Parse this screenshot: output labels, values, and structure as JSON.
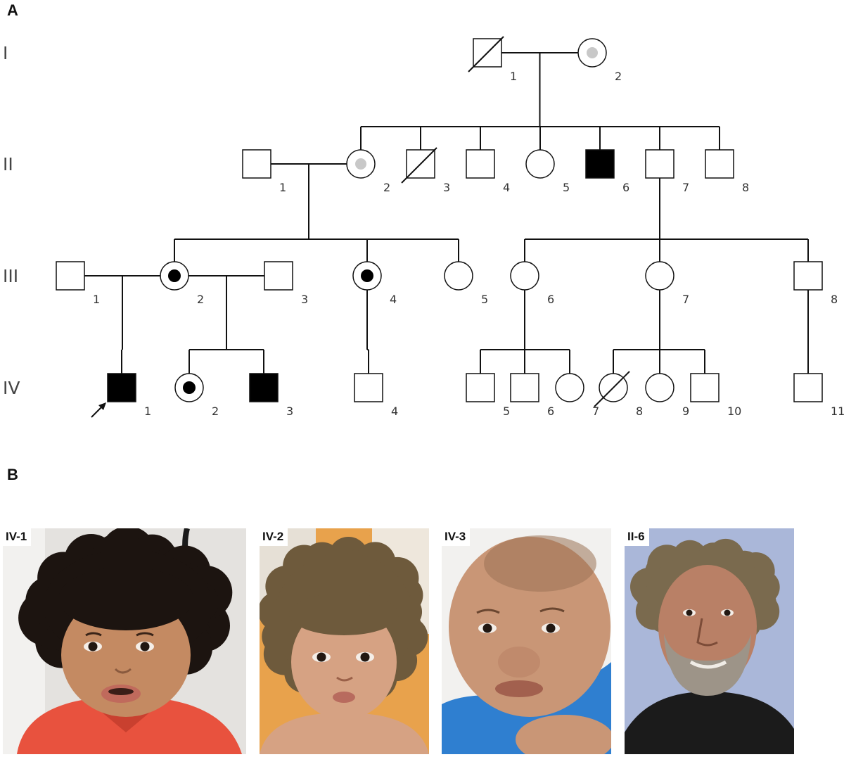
{
  "panels": {
    "a": "A",
    "b": "B"
  },
  "generations": [
    "I",
    "II",
    "III",
    "IV"
  ],
  "individuals": [
    {
      "id": "I-1",
      "gen": 0,
      "sex": "male",
      "status": "unaffected",
      "deceased": true,
      "label": "1"
    },
    {
      "id": "I-2",
      "gen": 0,
      "sex": "female",
      "status": "mosaic",
      "deceased": false,
      "label": "2"
    },
    {
      "id": "II-1",
      "gen": 1,
      "sex": "male",
      "status": "unaffected",
      "deceased": false,
      "label": "1"
    },
    {
      "id": "II-2",
      "gen": 1,
      "sex": "female",
      "status": "mosaic",
      "deceased": false,
      "label": "2"
    },
    {
      "id": "II-3",
      "gen": 1,
      "sex": "male",
      "status": "unaffected",
      "deceased": true,
      "label": "3"
    },
    {
      "id": "II-4",
      "gen": 1,
      "sex": "male",
      "status": "unaffected",
      "deceased": false,
      "label": "4"
    },
    {
      "id": "II-5",
      "gen": 1,
      "sex": "female",
      "status": "unaffected",
      "deceased": false,
      "label": "5"
    },
    {
      "id": "II-6",
      "gen": 1,
      "sex": "male",
      "status": "affected",
      "deceased": false,
      "label": "6"
    },
    {
      "id": "II-7",
      "gen": 1,
      "sex": "male",
      "status": "unaffected",
      "deceased": false,
      "label": "7"
    },
    {
      "id": "II-8",
      "gen": 1,
      "sex": "male",
      "status": "unaffected",
      "deceased": false,
      "label": "8"
    },
    {
      "id": "III-1",
      "gen": 2,
      "sex": "male",
      "status": "unaffected",
      "deceased": false,
      "label": "1"
    },
    {
      "id": "III-2",
      "gen": 2,
      "sex": "female",
      "status": "carrier",
      "deceased": false,
      "label": "2"
    },
    {
      "id": "III-3",
      "gen": 2,
      "sex": "male",
      "status": "unaffected",
      "deceased": false,
      "label": "3"
    },
    {
      "id": "III-4",
      "gen": 2,
      "sex": "female",
      "status": "carrier",
      "deceased": false,
      "label": "4"
    },
    {
      "id": "III-5",
      "gen": 2,
      "sex": "female",
      "status": "unaffected",
      "deceased": false,
      "label": "5"
    },
    {
      "id": "III-6",
      "gen": 2,
      "sex": "female",
      "status": "unaffected",
      "deceased": false,
      "label": "6"
    },
    {
      "id": "III-7",
      "gen": 2,
      "sex": "female",
      "status": "unaffected",
      "deceased": false,
      "label": "7"
    },
    {
      "id": "III-8",
      "gen": 2,
      "sex": "male",
      "status": "unaffected",
      "deceased": false,
      "label": "8"
    },
    {
      "id": "IV-1",
      "gen": 3,
      "sex": "male",
      "status": "affected",
      "deceased": false,
      "label": "1",
      "proband": true
    },
    {
      "id": "IV-2",
      "gen": 3,
      "sex": "female",
      "status": "carrier",
      "deceased": false,
      "label": "2"
    },
    {
      "id": "IV-3",
      "gen": 3,
      "sex": "male",
      "status": "affected",
      "deceased": false,
      "label": "3"
    },
    {
      "id": "IV-4",
      "gen": 3,
      "sex": "male",
      "status": "unaffected",
      "deceased": false,
      "label": "4"
    },
    {
      "id": "IV-5",
      "gen": 3,
      "sex": "male",
      "status": "unaffected",
      "deceased": false,
      "label": "5"
    },
    {
      "id": "IV-6",
      "gen": 3,
      "sex": "male",
      "status": "unaffected",
      "deceased": false,
      "label": "6"
    },
    {
      "id": "IV-7",
      "gen": 3,
      "sex": "female",
      "status": "unaffected",
      "deceased": false,
      "label": "7"
    },
    {
      "id": "IV-8",
      "gen": 3,
      "sex": "female",
      "status": "unaffected",
      "deceased": true,
      "label": "8"
    },
    {
      "id": "IV-9",
      "gen": 3,
      "sex": "female",
      "status": "unaffected",
      "deceased": false,
      "label": "9"
    },
    {
      "id": "IV-10",
      "gen": 3,
      "sex": "male",
      "status": "unaffected",
      "deceased": false,
      "label": "10"
    },
    {
      "id": "IV-11",
      "gen": 3,
      "sex": "male",
      "status": "unaffected",
      "deceased": false,
      "label": "11"
    }
  ],
  "families": [
    {
      "parents": [
        "I-1",
        "I-2"
      ],
      "children": [
        "II-2",
        "II-3",
        "II-4",
        "II-5",
        "II-6",
        "II-7",
        "II-8"
      ]
    },
    {
      "parents": [
        "II-1",
        "II-2"
      ],
      "children": [
        "III-2",
        "III-4",
        "III-5"
      ]
    },
    {
      "parents": [
        "II-7"
      ],
      "children": [
        "III-6",
        "III-7",
        "III-8"
      ]
    },
    {
      "parents": [
        "III-1",
        "III-2"
      ],
      "children": [
        "IV-1"
      ]
    },
    {
      "parents": [
        "III-2",
        "III-3"
      ],
      "children": [
        "IV-2",
        "IV-3"
      ]
    },
    {
      "parents": [
        "III-4"
      ],
      "children": [
        "IV-4"
      ]
    },
    {
      "parents": [
        "III-6"
      ],
      "children": [
        "IV-5",
        "IV-6",
        "IV-7"
      ]
    },
    {
      "parents": [
        "III-7"
      ],
      "children": [
        "IV-8",
        "IV-9",
        "IV-10"
      ]
    },
    {
      "parents": [
        "III-8"
      ],
      "children": [
        "IV-11"
      ]
    }
  ],
  "colors": {
    "line": "#111111",
    "affected": "#000000",
    "mosaic_dot": "#c8c8c8",
    "carrier_dot": "#000000"
  },
  "photos": [
    {
      "label": "IV-1",
      "subject": "toddler-boy",
      "hair": "#1c1410",
      "skin": "#c48a62",
      "shirt": "#e8523e",
      "bg": "#e4e2df"
    },
    {
      "label": "IV-2",
      "subject": "toddler-girl",
      "hair": "#6e5a3c",
      "skin": "#d6a283",
      "shirt": "#d6a283",
      "bg": "#e8a24c"
    },
    {
      "label": "IV-3",
      "subject": "infant-boy",
      "hair": "#9a7355",
      "skin": "#c99676",
      "shirt": "#2f7fd0",
      "bg": "#f2f1ef"
    },
    {
      "label": "II-6",
      "subject": "adult-man",
      "hair": "#7a6a4e",
      "skin": "#b98066",
      "shirt": "#1b1b1b",
      "bg": "#aab7d9"
    }
  ]
}
